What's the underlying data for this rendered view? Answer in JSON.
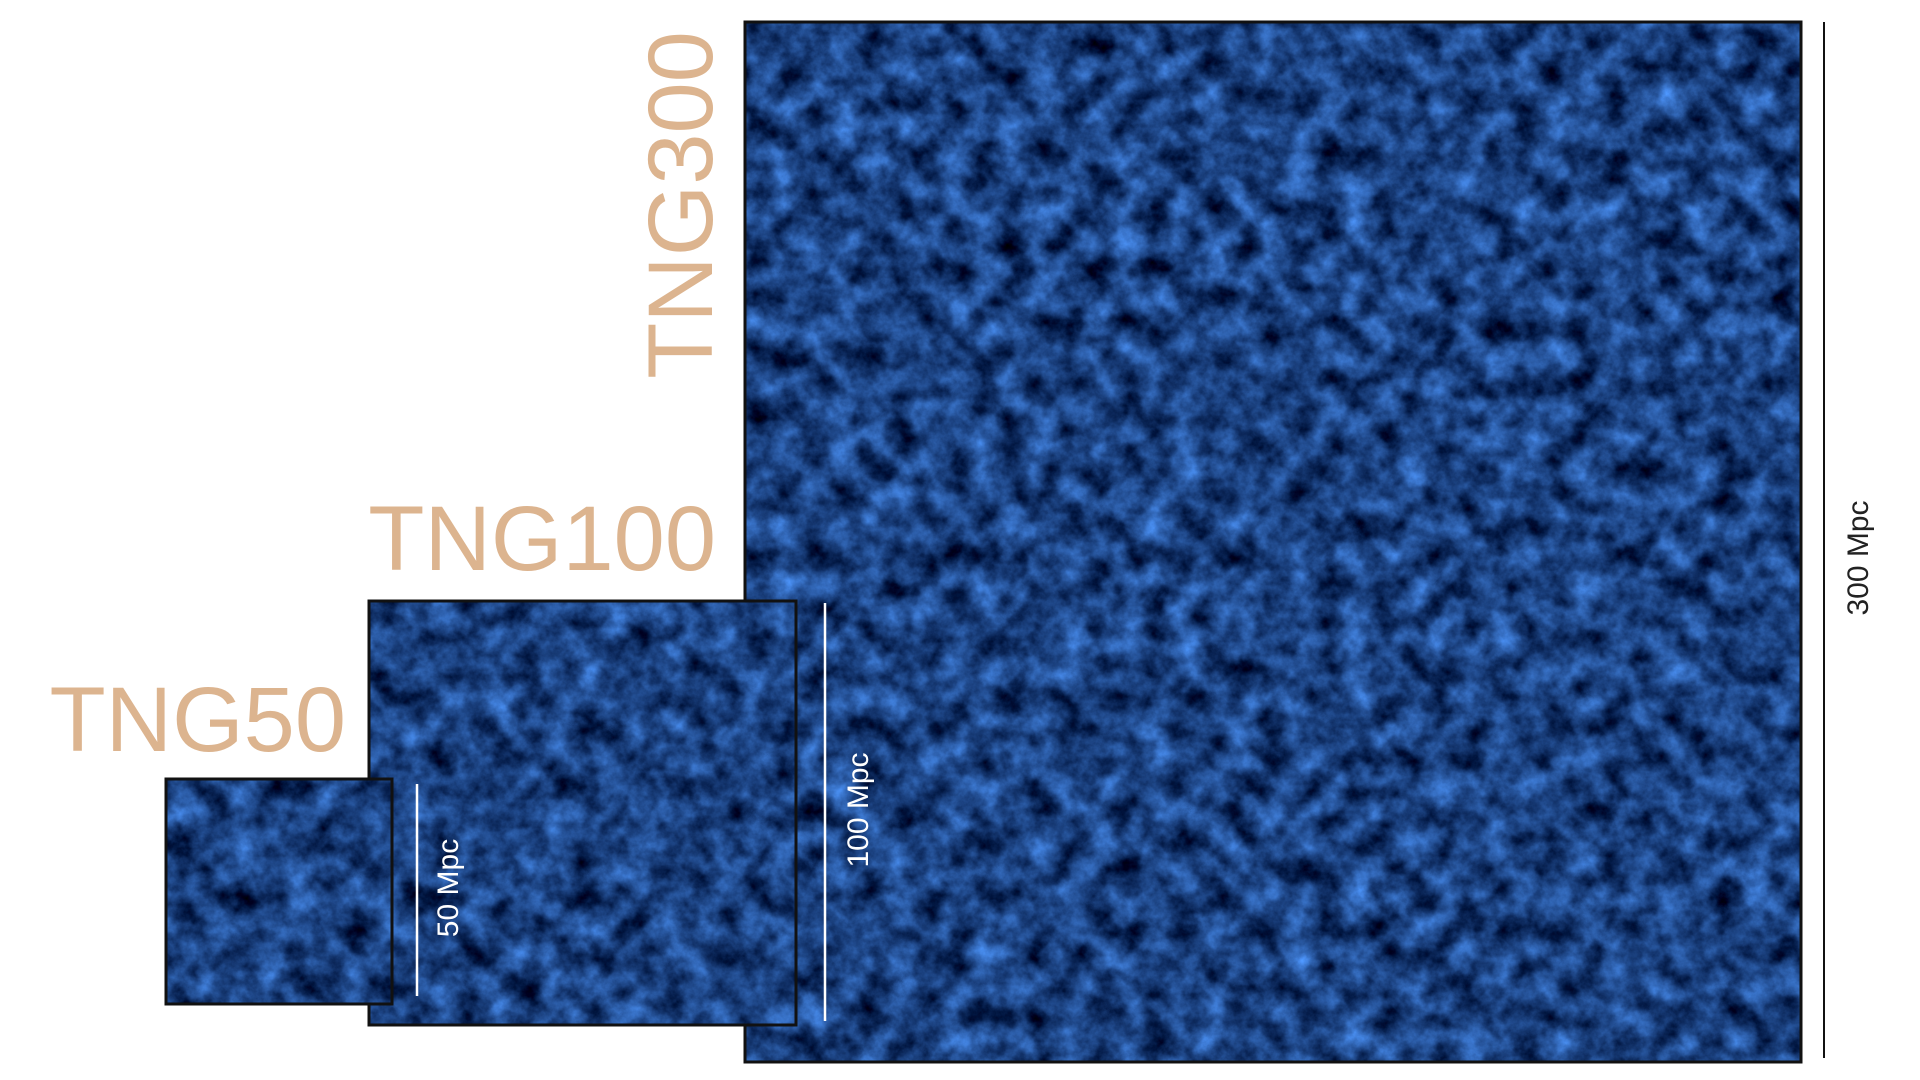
{
  "panels": [
    {
      "label": "TNG300",
      "scale": "300 Mpc"
    },
    {
      "label": "TNG100",
      "scale": "100 Mpc"
    },
    {
      "label": "TNG50",
      "scale": "50 Mpc"
    }
  ]
}
